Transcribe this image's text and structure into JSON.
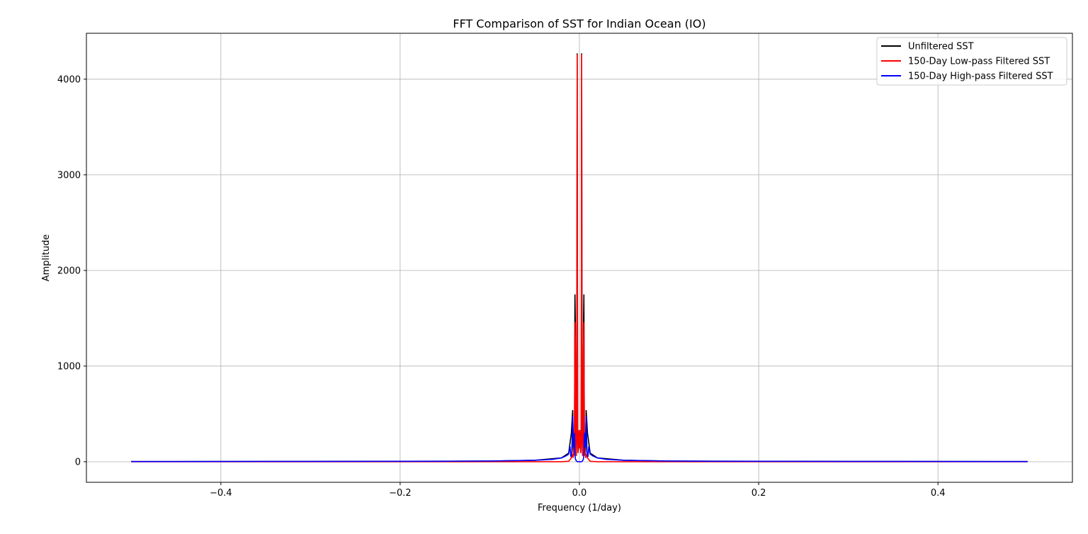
{
  "chart_data": {
    "type": "line",
    "title": "FFT Comparison of SST for Indian Ocean (IO)",
    "xlabel": "Frequency (1/day)",
    "ylabel": "Amplitude",
    "xlim": [
      -0.55,
      0.55
    ],
    "ylim": [
      -215,
      4480
    ],
    "xticks": [
      -0.4,
      -0.2,
      0.0,
      0.2,
      0.4
    ],
    "xtick_labels": [
      "−0.4",
      "−0.2",
      "0.0",
      "0.2",
      "0.4"
    ],
    "yticks": [
      0,
      1000,
      2000,
      3000,
      4000
    ],
    "ytick_labels": [
      "0",
      "1000",
      "2000",
      "3000",
      "4000"
    ],
    "grid": true,
    "legend_position": "top-right",
    "series": [
      {
        "name": "Unfiltered SST",
        "color": "#000000",
        "x": [
          -0.5,
          -0.3,
          -0.1,
          -0.05,
          -0.02,
          -0.012,
          -0.009,
          -0.0075,
          -0.007,
          -0.0065,
          -0.0055,
          -0.005,
          -0.0045,
          -0.004,
          -0.0035,
          -0.003,
          -0.0025,
          -0.002,
          -0.0015,
          -0.001,
          -0.0005,
          0.0,
          0.0005,
          0.001,
          0.0015,
          0.002,
          0.0025,
          0.003,
          0.0035,
          0.004,
          0.0045,
          0.005,
          0.0055,
          0.0065,
          0.007,
          0.0075,
          0.009,
          0.012,
          0.02,
          0.05,
          0.1,
          0.3,
          0.5
        ],
        "y": [
          2,
          3,
          7,
          15,
          40,
          90,
          300,
          540,
          150,
          60,
          300,
          1750,
          1400,
          200,
          80,
          250,
          4270,
          300,
          100,
          200,
          330,
          150,
          330,
          200,
          100,
          300,
          4270,
          250,
          80,
          200,
          1400,
          1750,
          300,
          60,
          150,
          540,
          300,
          90,
          40,
          15,
          7,
          3,
          2
        ]
      },
      {
        "name": "150-Day Low-pass Filtered SST",
        "color": "#ff0000",
        "x": [
          -0.5,
          -0.02,
          -0.012,
          -0.009,
          -0.0075,
          -0.007,
          -0.0055,
          -0.005,
          -0.0045,
          -0.004,
          -0.0035,
          -0.003,
          -0.0025,
          -0.002,
          -0.0015,
          -0.001,
          -0.0005,
          0.0,
          0.0005,
          0.001,
          0.0015,
          0.002,
          0.0025,
          0.003,
          0.0035,
          0.004,
          0.0045,
          0.005,
          0.0055,
          0.007,
          0.0075,
          0.009,
          0.012,
          0.02,
          0.5
        ],
        "y": [
          0,
          0,
          5,
          40,
          80,
          40,
          250,
          1460,
          1200,
          150,
          60,
          230,
          4260,
          280,
          90,
          180,
          330,
          140,
          330,
          180,
          90,
          280,
          4260,
          230,
          60,
          150,
          1200,
          1460,
          250,
          40,
          80,
          40,
          5,
          0,
          0
        ]
      },
      {
        "name": "150-Day High-pass Filtered SST",
        "color": "#0000ff",
        "x": [
          -0.5,
          -0.3,
          -0.15,
          -0.1,
          -0.05,
          -0.03,
          -0.02,
          -0.015,
          -0.012,
          -0.0105,
          -0.0095,
          -0.0085,
          -0.0075,
          -0.0065,
          -0.0055,
          -0.005,
          -0.0045,
          -0.004,
          -0.0035,
          -0.003,
          -0.0025,
          -0.002,
          0.002,
          0.0025,
          0.003,
          0.0035,
          0.004,
          0.0045,
          0.005,
          0.0055,
          0.0065,
          0.0075,
          0.0085,
          0.0095,
          0.0105,
          0.012,
          0.015,
          0.02,
          0.03,
          0.05,
          0.1,
          0.15,
          0.3,
          0.5
        ],
        "y": [
          2,
          3,
          5,
          8,
          15,
          25,
          40,
          60,
          80,
          160,
          50,
          100,
          480,
          150,
          300,
          80,
          30,
          20,
          10,
          5,
          2,
          0,
          0,
          2,
          5,
          10,
          20,
          30,
          80,
          300,
          150,
          480,
          100,
          50,
          160,
          80,
          60,
          40,
          25,
          15,
          8,
          5,
          3,
          2
        ]
      }
    ]
  }
}
